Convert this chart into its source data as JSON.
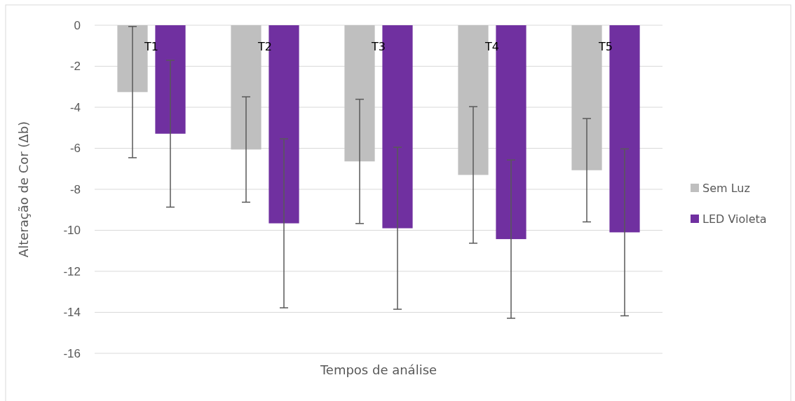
{
  "chart_data": {
    "type": "bar",
    "categories": [
      "T1",
      "T2",
      "T3",
      "T4",
      "T5"
    ],
    "xlabel": "Tempos de análise",
    "ylabel": "Alteração de Cor (Δb)",
    "series": [
      {
        "name": "Sem Luz",
        "color": "#bfbfbf",
        "values": [
          -3.26,
          -6.06,
          -6.64,
          -7.3,
          -7.07
        ],
        "errors": [
          3.2,
          2.57,
          3.03,
          3.33,
          2.52
        ]
      },
      {
        "name": "LED Violeta",
        "color": "#7030a0",
        "values": [
          -5.29,
          -9.66,
          -9.9,
          -10.43,
          -10.1
        ],
        "errors": [
          3.58,
          4.12,
          3.95,
          3.86,
          4.07
        ]
      }
    ],
    "ylim": [
      -16,
      0
    ],
    "yticks": [
      -16,
      -14,
      -12,
      -10,
      -8,
      -6,
      -4,
      -2,
      0
    ],
    "grid": "y",
    "legend": "right"
  }
}
